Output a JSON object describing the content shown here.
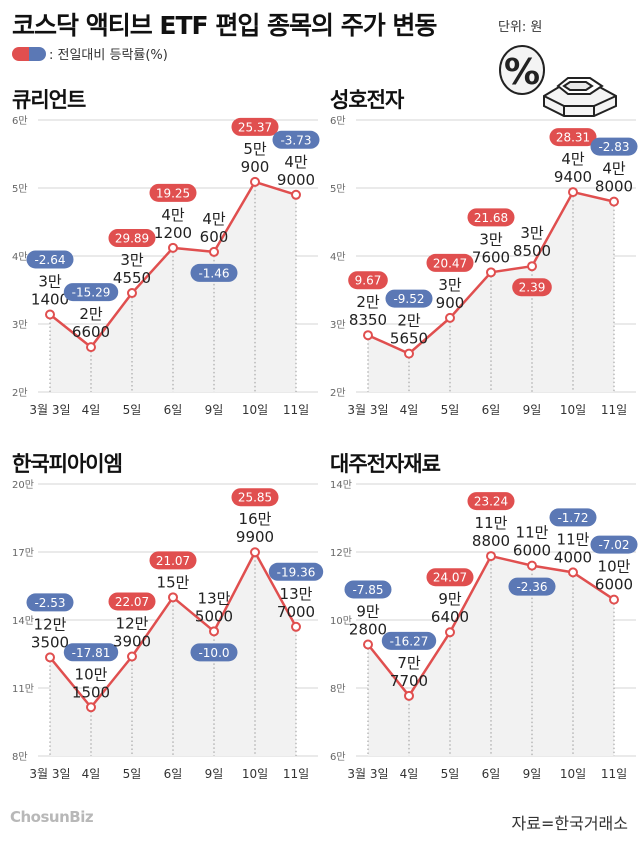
{
  "header": {
    "title": "코스닥 액티브 ETF 편입 종목의 주가 변동",
    "unit": "단위: 원",
    "legend_label": ": 전일대비 등락률(%)"
  },
  "colors": {
    "up": "#e04f4f",
    "down": "#5b78b5",
    "line": "#e04f4f",
    "area": "#f2f2f2",
    "grid": "#d6d6d6"
  },
  "chart_data": [
    {
      "type": "line",
      "title": "큐리언트",
      "categories": [
        "3월 3일",
        "4일",
        "5일",
        "6일",
        "9일",
        "10일",
        "11일"
      ],
      "values": [
        31400,
        26600,
        34550,
        41200,
        40600,
        50900,
        49000
      ],
      "price_labels": [
        [
          "3만",
          "1400"
        ],
        [
          "2만",
          "6600"
        ],
        [
          "3만",
          "4550"
        ],
        [
          "4만",
          "1200"
        ],
        [
          "4만",
          "600"
        ],
        [
          "5만",
          "900"
        ],
        [
          "4만",
          "9000"
        ]
      ],
      "change_pct": [
        "-2.64",
        "-15.29",
        "29.89",
        "19.25",
        "-1.46",
        "25.37",
        "-3.73"
      ],
      "badge_pos": [
        "above",
        "above",
        "above",
        "above",
        "below",
        "above",
        "above"
      ],
      "yticks": [
        "2만",
        "3만",
        "4만",
        "5만",
        "6만"
      ],
      "ylim": [
        20000,
        60000
      ]
    },
    {
      "type": "line",
      "title": "성호전자",
      "categories": [
        "3월 3일",
        "4일",
        "5일",
        "6일",
        "9일",
        "10일",
        "11일"
      ],
      "values": [
        28350,
        25650,
        30900,
        37600,
        38500,
        49400,
        48000
      ],
      "price_labels": [
        [
          "2만",
          "8350"
        ],
        [
          "2만",
          "5650"
        ],
        [
          "3만",
          "900"
        ],
        [
          "3만",
          "7600"
        ],
        [
          "3만",
          "8500"
        ],
        [
          "4만",
          "9400"
        ],
        [
          "4만",
          "8000"
        ]
      ],
      "change_pct": [
        "9.67",
        "-9.52",
        "20.47",
        "21.68",
        "2.39",
        "28.31",
        "-2.83"
      ],
      "badge_pos": [
        "above",
        "above",
        "above",
        "above",
        "below",
        "above",
        "above"
      ],
      "yticks": [
        "2만",
        "3만",
        "4만",
        "5만",
        "6만"
      ],
      "ylim": [
        20000,
        60000
      ]
    },
    {
      "type": "line",
      "title": "한국피아이엠",
      "categories": [
        "3월 3일",
        "4일",
        "5일",
        "6일",
        "9일",
        "10일",
        "11일"
      ],
      "values": [
        123500,
        101500,
        123900,
        150000,
        135000,
        169900,
        137000
      ],
      "price_labels": [
        [
          "12만",
          "3500"
        ],
        [
          "10만",
          "1500"
        ],
        [
          "12만",
          "3900"
        ],
        [
          "15만",
          ""
        ],
        [
          "13만",
          "5000"
        ],
        [
          "16만",
          "9900"
        ],
        [
          "13만",
          "7000"
        ]
      ],
      "change_pct": [
        "-2.53",
        "-17.81",
        "22.07",
        "21.07",
        "-10.0",
        "25.85",
        "-19.36"
      ],
      "badge_pos": [
        "above",
        "above",
        "above",
        "above",
        "below",
        "above",
        "above"
      ],
      "yticks": [
        "8만",
        "11만",
        "14만",
        "17만",
        "20만"
      ],
      "ylim": [
        80000,
        200000
      ]
    },
    {
      "type": "line",
      "title": "대주전자재료",
      "categories": [
        "3월 3일",
        "4일",
        "5일",
        "6일",
        "9일",
        "10일",
        "11일"
      ],
      "values": [
        92800,
        77700,
        96400,
        118800,
        116000,
        114000,
        106000
      ],
      "price_labels": [
        [
          "9만",
          "2800"
        ],
        [
          "7만",
          "7700"
        ],
        [
          "9만",
          "6400"
        ],
        [
          "11만",
          "8800"
        ],
        [
          "11만",
          "6000"
        ],
        [
          "11만",
          "4000"
        ],
        [
          "10만",
          "6000"
        ]
      ],
      "change_pct": [
        "-7.85",
        "-16.27",
        "24.07",
        "23.24",
        "-2.36",
        "-1.72",
        "-7.02"
      ],
      "badge_pos": [
        "above",
        "above",
        "above",
        "above",
        "below",
        "above",
        "above"
      ],
      "yticks": [
        "6만",
        "8만",
        "10만",
        "12만",
        "14만"
      ],
      "ylim": [
        60000,
        140000
      ]
    }
  ],
  "footer": {
    "logo": "ChosunBiz",
    "source": "자료=한국거래소"
  }
}
